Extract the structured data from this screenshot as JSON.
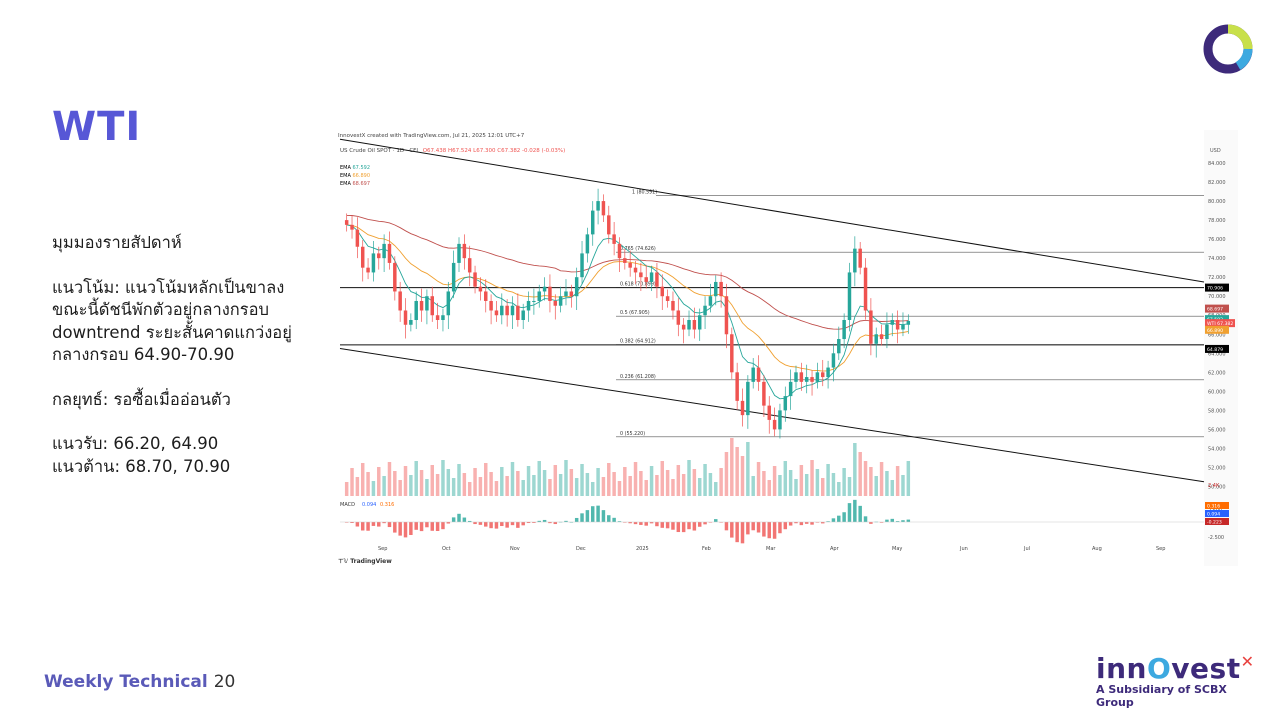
{
  "slide": {
    "title": "WTI",
    "weekly_view": "มุมมองรายสัปดาห์",
    "trend_lines": [
      "แนวโน้ม: แนวโน้มหลักเป็นขาลง",
      "ขณะนี้ดัชนีพักตัวอยู่กลางกรอบ",
      "downtrend ระยะสั้นคาดแกว่งอยู่",
      "กลางกรอบ 64.90-70.90"
    ],
    "strategy": "กลยุทธ์: รอซื้อเมื่ออ่อนตัว",
    "support": "แนวรับ: 66.20, 64.90",
    "resistance": "แนวต้าน: 68.70, 70.90",
    "footer_label": "Weekly Technical",
    "page_number": "20",
    "brand_name": "inn",
    "brand_name2": "vest",
    "brand_sub": "A Subsidiary of SCBX Group"
  },
  "chart_header": {
    "created": "InnovestX created with TradingView.com, Jul 21, 2025 12:01 UTC+7",
    "instrument": "US Crude Oil SPOT · 1D · CFI",
    "ohlc": "O67.438 H67.524 L67.300 C67.382 -0.028 (-0.03%)",
    "ema_label": "EMA",
    "ema_values": [
      "67.592",
      "66.890",
      "68.697"
    ],
    "currency": "USD",
    "watermark": "TradingView"
  },
  "colors": {
    "accent": "#5757d6",
    "up": "#26a69a",
    "down": "#ef5350",
    "ema_fast": "#26a69a",
    "ema_mid": "#f0a030",
    "ema_slow": "#c0504d"
  },
  "chart_data": {
    "type": "candlestick",
    "y_axis_ticks": [
      "84.000",
      "82.000",
      "80.000",
      "78.000",
      "76.000",
      "74.000",
      "72.000",
      "70.000",
      "68.000",
      "66.000",
      "64.000",
      "62.000",
      "60.000",
      "58.000",
      "56.000",
      "54.000",
      "52.000",
      "50.000"
    ],
    "ylim": [
      49,
      86
    ],
    "x_labels": [
      "Sep",
      "Oct",
      "Nov",
      "Dec",
      "2025",
      "Feb",
      "Mar",
      "Apr",
      "May",
      "Jun",
      "Jul",
      "Aug",
      "Sep"
    ],
    "fibonacci": [
      {
        "label": "1 (80.591)",
        "value": 80.591
      },
      {
        "label": "0.765 (74.626)",
        "value": 74.626
      },
      {
        "label": "0.618 (70.899)",
        "value": 70.899
      },
      {
        "label": "0.5 (67.905)",
        "value": 67.905
      },
      {
        "label": "0.382 (64.912)",
        "value": 64.912
      },
      {
        "label": "0.236 (61.208)",
        "value": 61.208
      },
      {
        "label": "0 (55.220)",
        "value": 55.22
      }
    ],
    "price_badges": [
      {
        "text": "70.906",
        "color": "#000000"
      },
      {
        "text": "68.697",
        "color": "#c0504d"
      },
      {
        "text": "67.592",
        "color": "#26a69a"
      },
      {
        "text": "WTI 67.382",
        "color": "#ef5350"
      },
      {
        "text": "66.890",
        "color": "#f0a030"
      },
      {
        "text": "64.879",
        "color": "#000000"
      }
    ],
    "volume_badge": "2.4K",
    "macd": {
      "label": "MACD",
      "values": [
        "0.094",
        "0.316"
      ],
      "axis_ticks": [
        "2.500",
        "-2.500"
      ],
      "badges": [
        "0.316",
        "0.094",
        "-0.223"
      ]
    },
    "closes": [
      77.5,
      77.0,
      75.2,
      73.0,
      72.5,
      74.5,
      74.0,
      75.5,
      73.5,
      70.5,
      68.5,
      67.0,
      67.5,
      69.5,
      68.5,
      70.0,
      68.0,
      67.5,
      68.0,
      70.5,
      73.5,
      75.5,
      74.0,
      72.5,
      71.0,
      70.5,
      69.5,
      68.5,
      68.0,
      69.0,
      68.0,
      69.0,
      67.5,
      68.5,
      69.5,
      69.5,
      70.5,
      71.0,
      69.5,
      69.0,
      70.0,
      70.5,
      70.0,
      72.0,
      74.5,
      76.5,
      79.0,
      80.0,
      78.5,
      76.5,
      75.5,
      74.0,
      73.5,
      73.0,
      72.5,
      72.0,
      71.5,
      72.5,
      71.0,
      70.0,
      69.5,
      68.5,
      67.0,
      66.5,
      67.5,
      66.5,
      68.0,
      69.0,
      70.0,
      71.5,
      70.0,
      66.0,
      62.0,
      59.0,
      57.5,
      61.0,
      62.5,
      61.0,
      58.5,
      57.0,
      56.0,
      58.0,
      59.5,
      61.0,
      62.0,
      61.0,
      61.5,
      61.0,
      62.0,
      61.5,
      62.5,
      64.0,
      65.5,
      67.5,
      72.5,
      75.0,
      73.0,
      68.5,
      65.0,
      66.0,
      65.5,
      67.0,
      67.5,
      66.5,
      67.0,
      67.4
    ]
  }
}
